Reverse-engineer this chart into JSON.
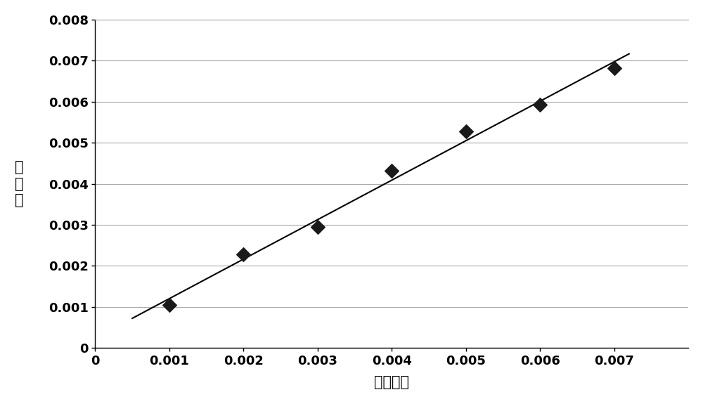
{
  "x_data": [
    0.001,
    0.002,
    0.003,
    0.004,
    0.005,
    0.006,
    0.007
  ],
  "y_data": [
    0.00105,
    0.00228,
    0.00295,
    0.00432,
    0.00528,
    0.00592,
    0.00682
  ],
  "line_color": "#000000",
  "marker_color": "#1a1a1a",
  "marker_style": "D",
  "marker_size": 10,
  "xlabel": "初始値，",
  "ylabel": "量\n测\n値",
  "xlim": [
    0,
    0.008
  ],
  "ylim": [
    0,
    0.008
  ],
  "xticks": [
    0,
    0.001,
    0.002,
    0.003,
    0.004,
    0.005,
    0.006,
    0.007
  ],
  "yticks": [
    0,
    0.001,
    0.002,
    0.003,
    0.004,
    0.005,
    0.006,
    0.007,
    0.008
  ],
  "background_color": "#ffffff",
  "grid_color": "#aaaaaa",
  "line_width": 1.5,
  "tick_fontsize": 13,
  "xlabel_fontsize": 15,
  "ylabel_fontsize": 15
}
